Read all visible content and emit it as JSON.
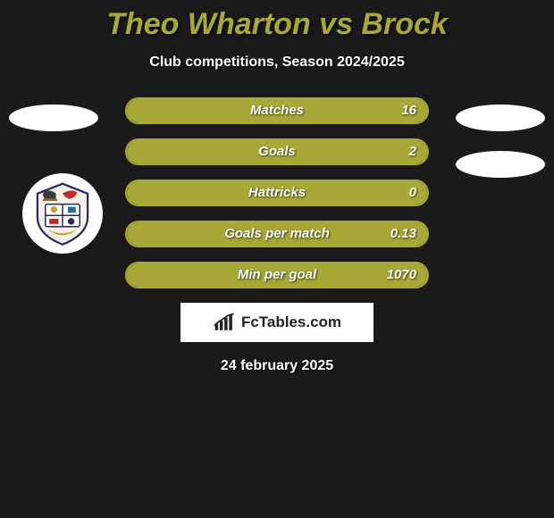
{
  "header": {
    "title": "Theo Wharton vs Brock",
    "title_color": "#a8a838",
    "subtitle": "Club competitions, Season 2024/2025"
  },
  "styling": {
    "background_color": "#1a1a1a",
    "bar_border_color": "#a8a838",
    "bar_fill_color": "#a8a838",
    "bar_fill_percent": 100,
    "text_color": "#ffffff",
    "ellipse_color": "#ffffff"
  },
  "stats": [
    {
      "label": "Matches",
      "value": "16"
    },
    {
      "label": "Goals",
      "value": "2"
    },
    {
      "label": "Hattricks",
      "value": "0"
    },
    {
      "label": "Goals per match",
      "value": "0.13"
    },
    {
      "label": "Min per goal",
      "value": "1070"
    }
  ],
  "footer": {
    "brand": "FcTables.com",
    "date": "24 february 2025"
  },
  "icons": {
    "crest": "coat-of-arms"
  }
}
